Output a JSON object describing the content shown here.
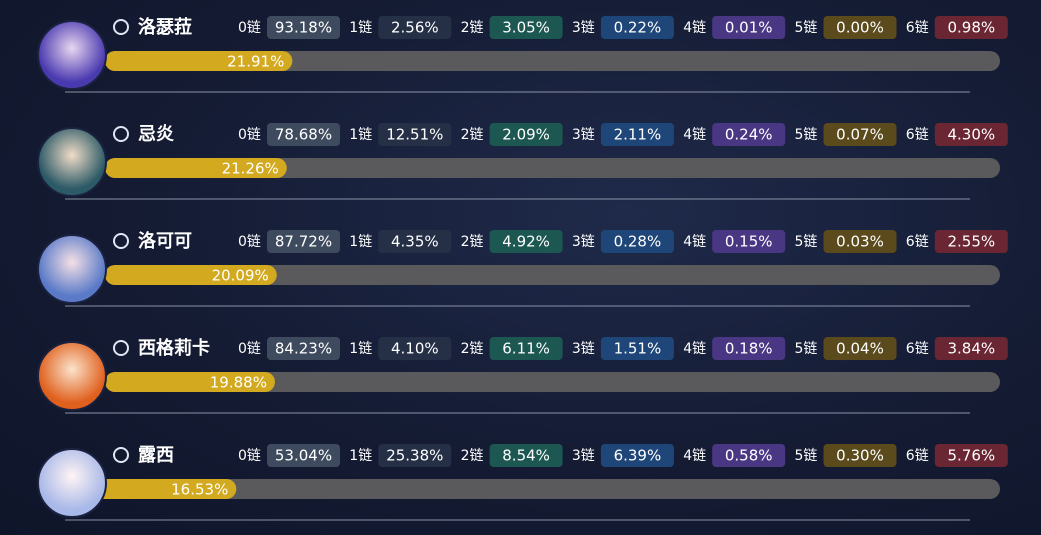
{
  "constellation_labels": [
    "0链",
    "1链",
    "2链",
    "3链",
    "4链",
    "5链",
    "6链"
  ],
  "characters": [
    {
      "name": "洛瑟菈",
      "usage": {
        "value": 21.91,
        "label": "21.91%"
      },
      "chains": [
        "93.18%",
        "2.56%",
        "3.05%",
        "0.22%",
        "0.01%",
        "0.00%",
        "0.98%"
      ]
    },
    {
      "name": "忌炎",
      "usage": {
        "value": 21.26,
        "label": "21.26%"
      },
      "chains": [
        "78.68%",
        "12.51%",
        "2.09%",
        "2.11%",
        "0.24%",
        "0.07%",
        "4.30%"
      ]
    },
    {
      "name": "洛可可",
      "usage": {
        "value": 20.09,
        "label": "20.09%"
      },
      "chains": [
        "87.72%",
        "4.35%",
        "4.92%",
        "0.28%",
        "0.15%",
        "0.03%",
        "2.55%"
      ]
    },
    {
      "name": "西格莉卡",
      "usage": {
        "value": 19.88,
        "label": "19.88%"
      },
      "chains": [
        "84.23%",
        "4.10%",
        "6.11%",
        "1.51%",
        "0.18%",
        "0.04%",
        "3.84%"
      ]
    },
    {
      "name": "露西",
      "usage": {
        "value": 16.53,
        "label": "16.53%"
      },
      "chains": [
        "53.04%",
        "25.38%",
        "8.54%",
        "6.39%",
        "0.58%",
        "0.30%",
        "5.76%"
      ]
    }
  ]
}
